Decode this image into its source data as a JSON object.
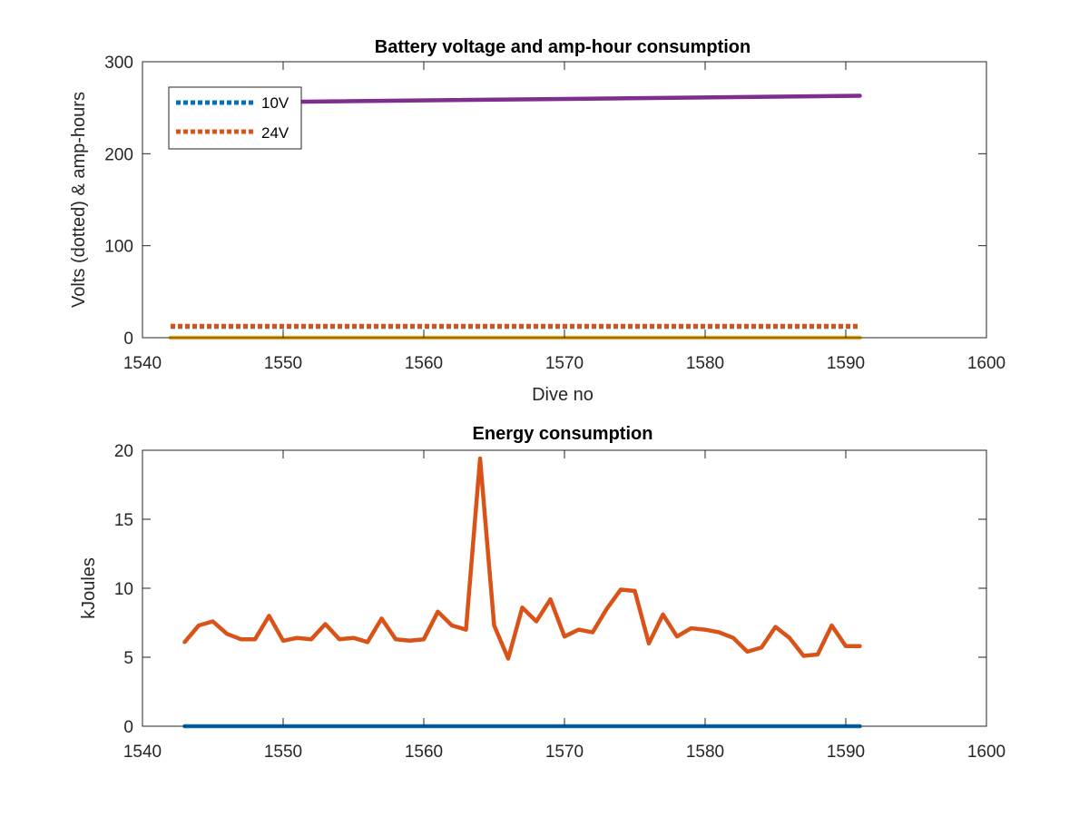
{
  "chart_data": [
    {
      "type": "line",
      "title": "Battery voltage and amp-hour consumption",
      "xlabel": "Dive no",
      "ylabel": "Volts (dotted) & amp-hours",
      "xlim": [
        1540,
        1600
      ],
      "ylim": [
        0,
        300
      ],
      "xticks": [
        1540,
        1550,
        1560,
        1570,
        1580,
        1590,
        1600
      ],
      "yticks": [
        0,
        100,
        200,
        300
      ],
      "grid": false,
      "legend": "top-left",
      "series": [
        {
          "name": "10V",
          "style": "dotted",
          "color": "#0072BD",
          "x": [
            1542,
            1591
          ],
          "y": [
            12,
            12
          ]
        },
        {
          "name": "24V",
          "style": "dotted",
          "color": "#D95319",
          "x": [
            1542,
            1591
          ],
          "y": [
            12.5,
            12.5
          ]
        },
        {
          "style": "solid",
          "color": "#EDB120",
          "x": [
            1542,
            1591
          ],
          "y": [
            0,
            0
          ]
        },
        {
          "style": "solid",
          "color": "#7E2F8E",
          "x": [
            1542,
            1591
          ],
          "y": [
            255,
            263
          ]
        }
      ]
    },
    {
      "type": "line",
      "title": "Energy consumption",
      "xlabel": "",
      "ylabel": "kJoules",
      "xlim": [
        1540,
        1600
      ],
      "ylim": [
        0,
        20
      ],
      "xticks": [
        1540,
        1550,
        1560,
        1570,
        1580,
        1590,
        1600
      ],
      "yticks": [
        0,
        5,
        10,
        15,
        20
      ],
      "grid": false,
      "series": [
        {
          "style": "solid",
          "color": "#0072BD",
          "x": [
            1543,
            1591
          ],
          "y": [
            0,
            0
          ]
        },
        {
          "style": "solid",
          "color": "#D95319",
          "x": [
            1543,
            1544,
            1545,
            1546,
            1547,
            1548,
            1549,
            1550,
            1551,
            1552,
            1553,
            1554,
            1555,
            1556,
            1557,
            1558,
            1559,
            1560,
            1561,
            1562,
            1563,
            1564,
            1565,
            1566,
            1567,
            1568,
            1569,
            1570,
            1571,
            1572,
            1573,
            1574,
            1575,
            1576,
            1577,
            1578,
            1579,
            1580,
            1581,
            1582,
            1583,
            1584,
            1585,
            1586,
            1587,
            1588,
            1589,
            1590,
            1591
          ],
          "y": [
            6.1,
            7.3,
            7.6,
            6.7,
            6.3,
            6.3,
            8.0,
            6.2,
            6.4,
            6.3,
            7.4,
            6.3,
            6.4,
            6.1,
            7.8,
            6.3,
            6.2,
            6.3,
            8.3,
            7.3,
            7.0,
            19.4,
            7.3,
            4.9,
            8.6,
            7.6,
            9.2,
            6.5,
            7.0,
            6.8,
            8.5,
            9.9,
            9.8,
            6.0,
            8.1,
            6.5,
            7.1,
            7.0,
            6.8,
            6.4,
            5.4,
            5.7,
            7.2,
            6.4,
            5.1,
            5.2,
            7.3,
            5.8,
            5.8
          ]
        }
      ]
    }
  ]
}
